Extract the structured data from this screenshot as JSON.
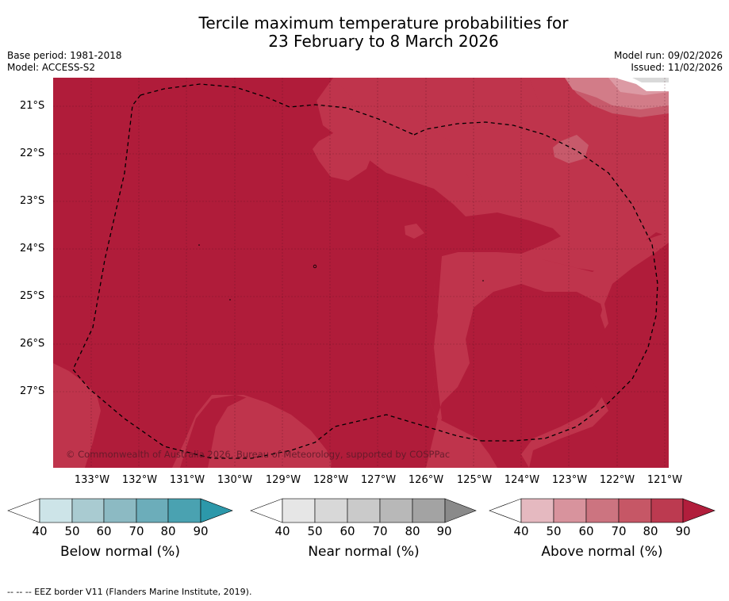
{
  "title": {
    "line1": "Tercile maximum temperature probabilities for",
    "line2": "23 February to 8 March 2026"
  },
  "meta": {
    "base_period": "Base period: 1981-2018",
    "model": "Model: ACCESS-S2",
    "model_run": "Model run: 09/02/2026",
    "issued": "Issued: 11/02/2026"
  },
  "map": {
    "copyright": "© Commonwealth of Australia 2026, Bureau of Meteorology, supported by COSPPac",
    "lon_labels": [
      "133°W",
      "132°W",
      "131°W",
      "130°W",
      "129°W",
      "128°W",
      "127°W",
      "126°W",
      "125°W",
      "124°W",
      "123°W",
      "122°W",
      "121°W"
    ],
    "lat_labels": [
      "21°S",
      "22°S",
      "23°S",
      "24°S",
      "25°S",
      "26°S",
      "27°S"
    ],
    "colors": {
      "above_90": "#b01c3a",
      "above_80": "#bf344c",
      "above_70": "#c75a6b",
      "above_60": "#d27c88",
      "above_50": "#dc9aa4"
    }
  },
  "colorbars": [
    {
      "name": "below",
      "label": "Below normal (%)",
      "ticks": [
        "40",
        "50",
        "60",
        "70",
        "80",
        "90"
      ],
      "colors": [
        "#cde4e8",
        "#a9cbd1",
        "#8cbac3",
        "#6cadba",
        "#4aa2b1",
        "#2c98aa"
      ]
    },
    {
      "name": "near",
      "label": "Near normal (%)",
      "ticks": [
        "40",
        "50",
        "60",
        "70",
        "80",
        "90"
      ],
      "colors": [
        "#e6e6e6",
        "#d8d8d8",
        "#cacaca",
        "#b8b8b8",
        "#a3a3a3",
        "#8a8a8a"
      ]
    },
    {
      "name": "above",
      "label": "Above normal (%)",
      "ticks": [
        "40",
        "50",
        "60",
        "70",
        "80",
        "90"
      ],
      "colors": [
        "#e5b9c0",
        "#d8939d",
        "#cc7480",
        "#c65766",
        "#bc3a50",
        "#b11e3c"
      ]
    }
  ],
  "footnote": "--  --  -- EEZ border V11 (Flanders Marine Institute, 2019)."
}
